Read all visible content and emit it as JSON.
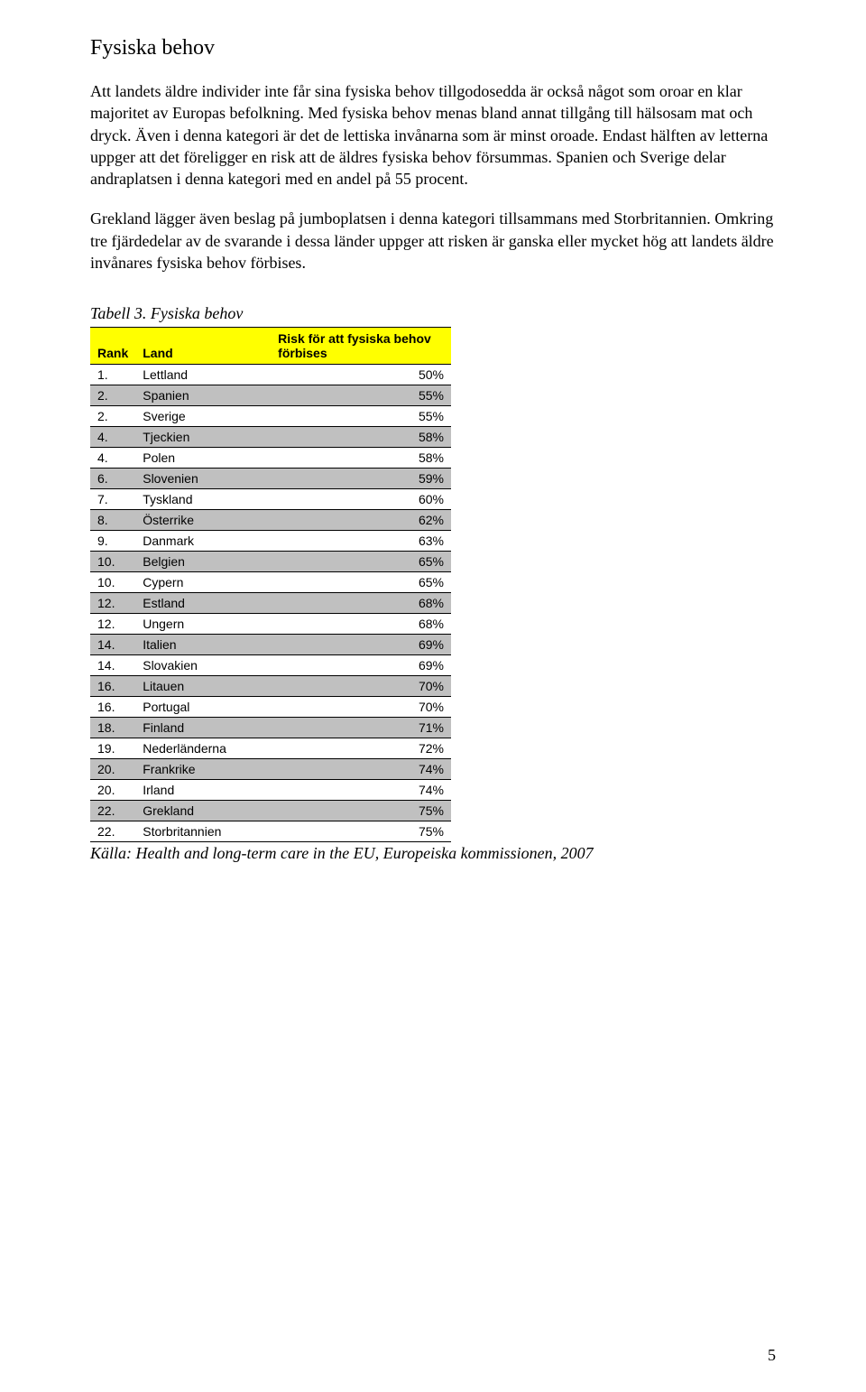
{
  "heading": "Fysiska behov",
  "paragraphs": [
    "Att landets äldre individer inte får sina fysiska behov tillgodosedda är också något som oroar en klar majoritet av Europas befolkning. Med fysiska behov menas bland annat tillgång till hälsosam mat och dryck. Även i denna kategori är det de lettiska invånarna som är minst oroade. Endast hälften av letterna uppger att det föreligger en risk att de äldres fysiska behov försummas. Spanien och Sverige delar andraplatsen i denna kategori med en andel på 55 procent.",
    "Grekland lägger även beslag på jumboplatsen i denna kategori tillsammans med Storbritannien. Omkring tre fjärdedelar av de svarande i dessa länder uppger att risken är ganska eller mycket hög att landets äldre invånares fysiska behov förbises."
  ],
  "table": {
    "caption": "Tabell 3. Fysiska behov",
    "columns": [
      "Rank",
      "Land",
      "Risk för att fysiska behov förbises"
    ],
    "rows": [
      {
        "rank": "1.",
        "land": "Lettland",
        "value": "50%",
        "alt": false
      },
      {
        "rank": "2.",
        "land": "Spanien",
        "value": "55%",
        "alt": true
      },
      {
        "rank": "2.",
        "land": "Sverige",
        "value": "55%",
        "alt": false
      },
      {
        "rank": "4.",
        "land": "Tjeckien",
        "value": "58%",
        "alt": true
      },
      {
        "rank": "4.",
        "land": "Polen",
        "value": "58%",
        "alt": false
      },
      {
        "rank": "6.",
        "land": "Slovenien",
        "value": "59%",
        "alt": true
      },
      {
        "rank": "7.",
        "land": "Tyskland",
        "value": "60%",
        "alt": false
      },
      {
        "rank": "8.",
        "land": "Österrike",
        "value": "62%",
        "alt": true
      },
      {
        "rank": "9.",
        "land": "Danmark",
        "value": "63%",
        "alt": false
      },
      {
        "rank": "10.",
        "land": "Belgien",
        "value": "65%",
        "alt": true
      },
      {
        "rank": "10.",
        "land": "Cypern",
        "value": "65%",
        "alt": false
      },
      {
        "rank": "12.",
        "land": "Estland",
        "value": "68%",
        "alt": true
      },
      {
        "rank": "12.",
        "land": "Ungern",
        "value": "68%",
        "alt": false
      },
      {
        "rank": "14.",
        "land": "Italien",
        "value": "69%",
        "alt": true
      },
      {
        "rank": "14.",
        "land": "Slovakien",
        "value": "69%",
        "alt": false
      },
      {
        "rank": "16.",
        "land": "Litauen",
        "value": "70%",
        "alt": true
      },
      {
        "rank": "16.",
        "land": "Portugal",
        "value": "70%",
        "alt": false
      },
      {
        "rank": "18.",
        "land": "Finland",
        "value": "71%",
        "alt": true
      },
      {
        "rank": "19.",
        "land": "Nederländerna",
        "value": "72%",
        "alt": false
      },
      {
        "rank": "20.",
        "land": "Frankrike",
        "value": "74%",
        "alt": true
      },
      {
        "rank": "20.",
        "land": "Irland",
        "value": "74%",
        "alt": false
      },
      {
        "rank": "22.",
        "land": "Grekland",
        "value": "75%",
        "alt": true
      },
      {
        "rank": "22.",
        "land": "Storbritannien",
        "value": "75%",
        "alt": false
      }
    ],
    "colors": {
      "header_bg": "#ffff00",
      "alt_bg": "#c0c0c0",
      "border": "#000000",
      "background": "#ffffff"
    },
    "font": {
      "header_family": "Arial",
      "header_weight": "bold",
      "body_family": "Arial",
      "size_pt": 10
    }
  },
  "source": "Källa: Health and long-term care in the EU, Europeiska kommissionen, 2007",
  "page_number": "5"
}
